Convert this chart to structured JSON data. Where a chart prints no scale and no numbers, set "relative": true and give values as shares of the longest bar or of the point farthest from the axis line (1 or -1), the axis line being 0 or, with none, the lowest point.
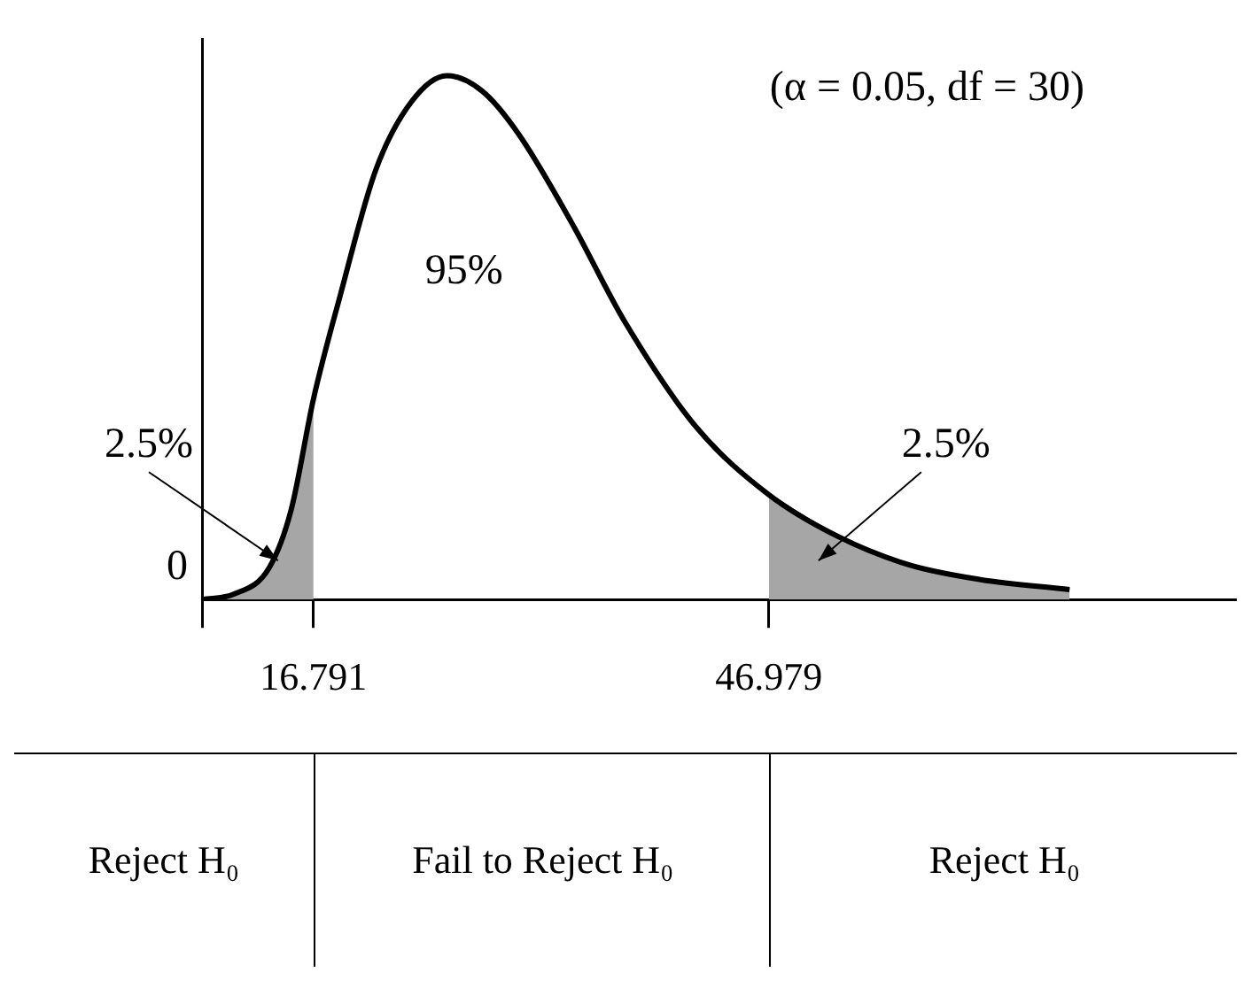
{
  "chart_data": {
    "type": "line",
    "relative": true,
    "legend": false,
    "grid": false,
    "marker": "none",
    "xlim": [
      9.4,
      78
    ],
    "xticks": [
      {
        "value": 9.4,
        "label": null
      },
      16.791,
      46.979
    ],
    "series": [
      {
        "type": "area",
        "color": "#a6a6a6",
        "x": [
          9.4,
          11.48,
          13.84,
          15.3,
          16.791
        ],
        "values": [
          0,
          0.01,
          0.06,
          0.17,
          0.383
        ]
      },
      {
        "type": "area",
        "color": "#a6a6a6",
        "x": [
          46.979,
          51.58,
          56.29,
          61.01,
          66.91
        ],
        "values": [
          0.2,
          0.12,
          0.066,
          0.038,
          0.019
        ]
      },
      {
        "type": "line",
        "color": "#000000",
        "x": [
          9.4,
          11.48,
          13.84,
          15.3,
          16.791,
          18.56,
          20.92,
          23.28,
          25.63,
          27.99,
          30.35,
          33.89,
          37.43,
          42.14,
          46.979,
          51.58,
          56.29,
          61.01,
          66.91
        ],
        "values": [
          0,
          0.01,
          0.06,
          0.17,
          0.383,
          0.58,
          0.82,
          0.95,
          1,
          0.97,
          0.89,
          0.72,
          0.53,
          0.33,
          0.2,
          0.12,
          0.066,
          0.038,
          0.019
        ]
      }
    ],
    "annotations": [
      "(α = 0.05, df = 30)",
      "0",
      "95%",
      "2.5%",
      "2.5%",
      "Reject H₀",
      "Fail to Reject H₀",
      "Reject H₀"
    ]
  }
}
